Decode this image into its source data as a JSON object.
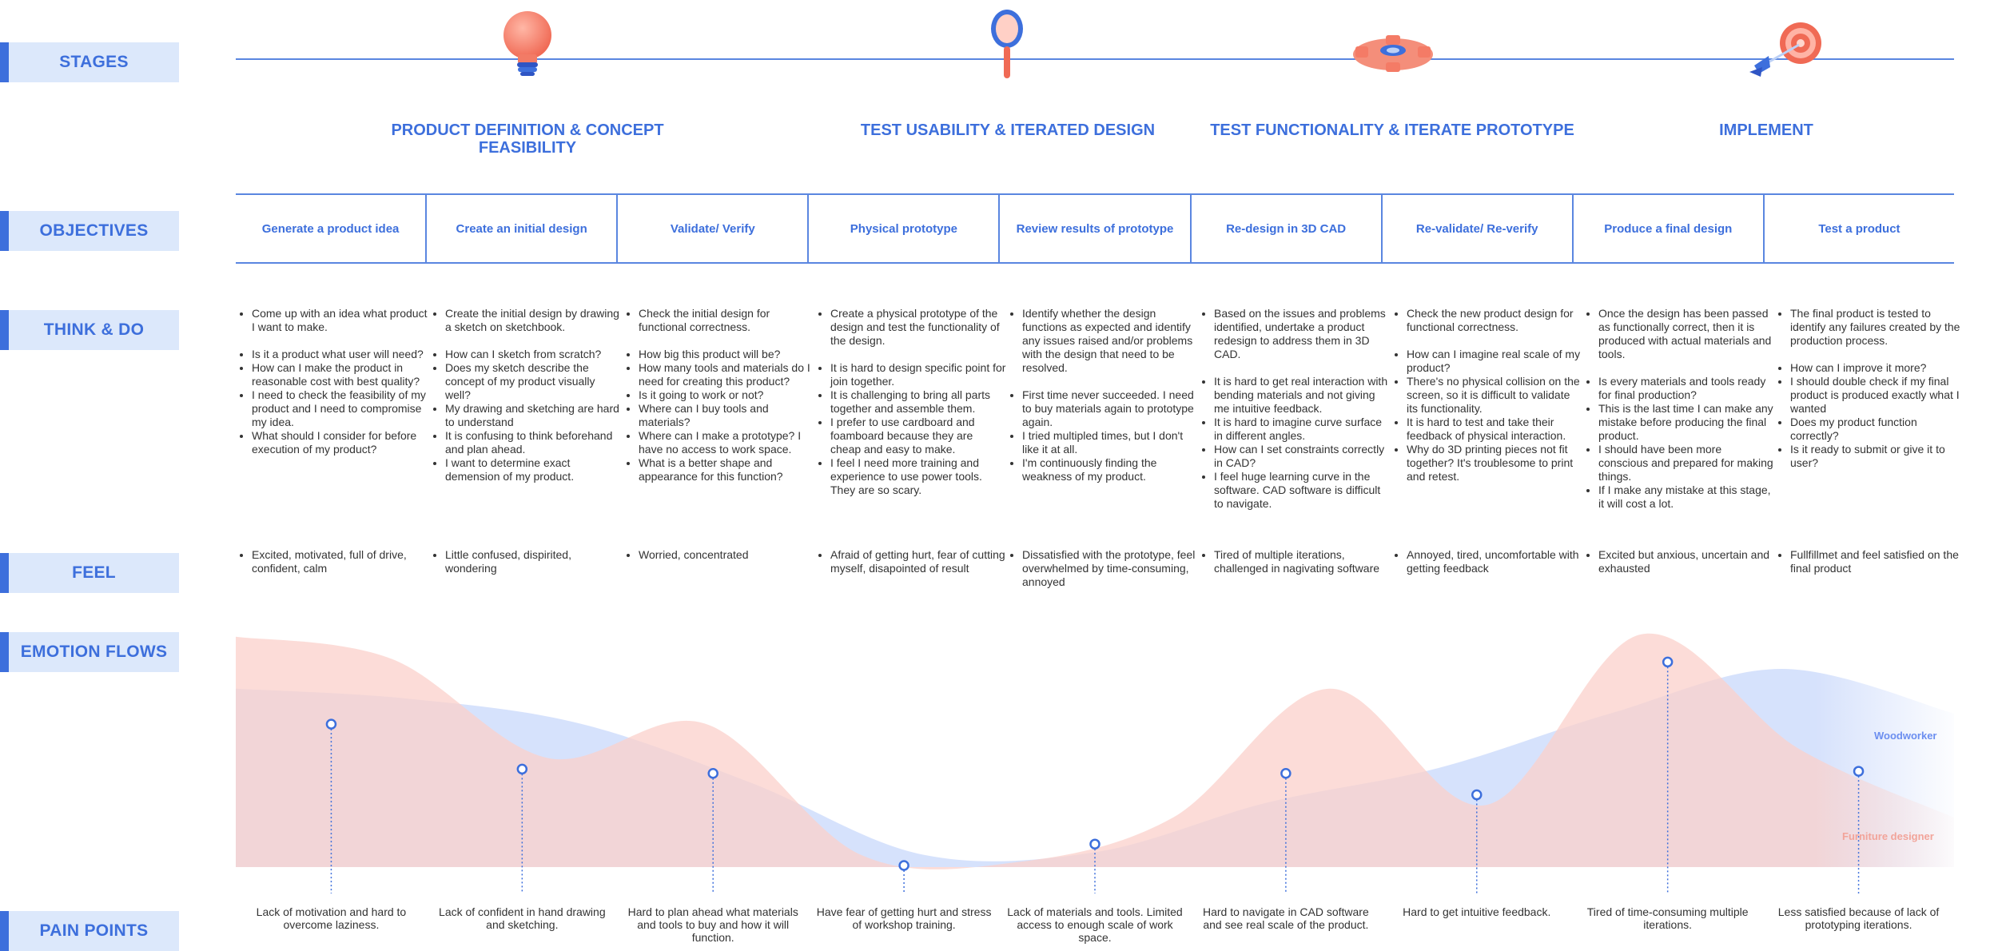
{
  "rows": {
    "stages": "STAGES",
    "objectives": "OBJECTIVES",
    "think_do": "THINK & DO",
    "feel": "FEEL",
    "emotion_flows": "EMOTION FLOWS",
    "pain_points": "PAIN POINTS"
  },
  "stages": [
    {
      "title": "PRODUCT DEFINITION & CONCEPT FEASIBILITY",
      "icon": "lightbulb-icon"
    },
    {
      "title": "TEST USABILITY & ITERATED DESIGN",
      "icon": "magnifier-icon"
    },
    {
      "title": "TEST FUNCTIONALITY & ITERATE PROTOTYPE",
      "icon": "gear-icon"
    },
    {
      "title": "IMPLEMENT",
      "icon": "target-icon"
    }
  ],
  "colors": {
    "accent": "#3d6fdc",
    "label_bg": "#dce8fb",
    "woodworker": "#6b8ef0",
    "designer": "#f2a49a"
  },
  "objectives": [
    "Generate a product idea",
    "Create an initial design",
    "Validate/ Verify",
    "Physical prototype",
    "Review results of prototype",
    "Re-design in 3D CAD",
    "Re-validate/ Re-verify",
    "Produce a final design",
    "Test a product"
  ],
  "think_do": [
    {
      "first": "Come up with an idea what product I want to make.",
      "items": [
        "Is it a product what user will need?",
        "How can I make the product in reasonable cost with best quality?",
        "I need to check the feasibility of my product and I need to compromise my idea.",
        "What should I consider for before execution of my product?"
      ]
    },
    {
      "first": "Create the initial design by drawing a sketch on sketchbook.",
      "items": [
        "How can I sketch from scratch?",
        "Does my sketch describe the concept of my product visually well?",
        "My drawing and sketching are hard to understand",
        "It is confusing to think beforehand and plan ahead.",
        "I want to determine exact demension of my product."
      ]
    },
    {
      "first": "Check the initial design for functional correctness.",
      "items": [
        "How big this product will be?",
        "How many tools and materials do I need for creating this product?",
        "Is it going to work or not?",
        "Where can I buy tools and materials?",
        "Where can I make a prototype? I have no access to work space.",
        "What is a better shape and appearance for this function?"
      ]
    },
    {
      "first": "Create a physical prototype of the design and test the functionality of the design.",
      "items": [
        "It is hard to design specific point for join together.",
        "It is challenging to bring all parts together and assemble them.",
        "I prefer to use cardboard and foamboard because they are cheap and easy to make.",
        "I feel I need more training and experience to use power tools. They are so scary."
      ]
    },
    {
      "first": "Identify whether the design functions as expected and identify any issues raised and/or problems with the design that need to be resolved.",
      "items": [
        "First time never succeeded. I need to buy materials again to prototype again.",
        "I tried multipled times, but I don't like it at all.",
        "I'm continuously finding the weakness of my product."
      ]
    },
    {
      "first": "Based on the issues and problems identified, undertake a product redesign to address them in 3D CAD.",
      "items": [
        "It is hard to get real interaction with bending materials and not giving me intuitive feedback.",
        "It is hard to imagine curve surface in different angles.",
        "How can I set constraints correctly in CAD?",
        "I feel huge learning curve in the software. CAD software is difficult to navigate."
      ]
    },
    {
      "first": "Check the new product design for functional correctness.",
      "items": [
        "How can I imagine real scale of my product?",
        "There's no physical collision on the screen, so it is difficult to validate its functionality.",
        "It is hard to test and take their feedback of physical interaction.",
        "Why do 3D printing pieces not fit together? It's troublesome to print and retest."
      ]
    },
    {
      "first": "Once the design has been passed as functionally correct, then it is produced with actual materials and tools.",
      "items": [
        "Is every materials and tools ready for final production?",
        "This is the last time I can make any mistake before producing the final product.",
        "I should have been more conscious and prepared for making things.",
        "If I make any mistake at this stage, it will cost a lot."
      ]
    },
    {
      "first": "The final product is tested to identify any failures created by the production process.",
      "items": [
        "How can I improve it more?",
        "I should double check if my final product is produced exactly what I wanted",
        "Does my product function correctly?",
        "Is it ready to submit or give it to user?"
      ]
    }
  ],
  "feel": [
    "Excited, motivated, full of drive, confident, calm",
    "Little confused, dispirited, wondering",
    "Worried, concentrated",
    "Afraid of getting hurt, fear of cutting myself, disapointed of result",
    "Dissatisfied with the prototype, feel overwhelmed by time-consuming, annoyed",
    "Tired of multiple iterations, challenged in nagivating software",
    "Annoyed, tired, uncomfortable with getting feedback",
    "Excited but anxious, uncertain and exhausted",
    "Fullfillmet and feel satisfied on the final product"
  ],
  "emotion_flows": {
    "legend": {
      "woodworker": "Woodworker",
      "designer": "Furniture designer"
    },
    "woodworker_curve": [
      0.72,
      0.68,
      0.58,
      0.34,
      0.05,
      0.06,
      0.26,
      0.4,
      0.62,
      0.8,
      0.62
    ],
    "designer_curve": [
      0.93,
      0.84,
      0.44,
      0.58,
      0.05,
      0.02,
      0.2,
      0.72,
      0.25,
      0.94,
      0.48,
      0.2
    ],
    "points": [
      0.66,
      0.45,
      0.43,
      0.0,
      0.1,
      0.43,
      0.33,
      0.95,
      0.44
    ]
  },
  "pain_points": [
    "Lack of motivation and hard to overcome laziness.",
    "Lack of confident in hand drawing and sketching.",
    "Hard to plan ahead what materials and tools to buy and how it will function.",
    "Have fear of getting hurt and stress of workshop training.",
    "Lack of materials and tools. Limited access to enough scale of work space.",
    "Hard to navigate in CAD software and see real scale of the product.",
    "Hard to get intuitive feedback.",
    "Tired of time-consuming multiple iterations.",
    "Less satisfied because of lack of prototyping iterations."
  ]
}
